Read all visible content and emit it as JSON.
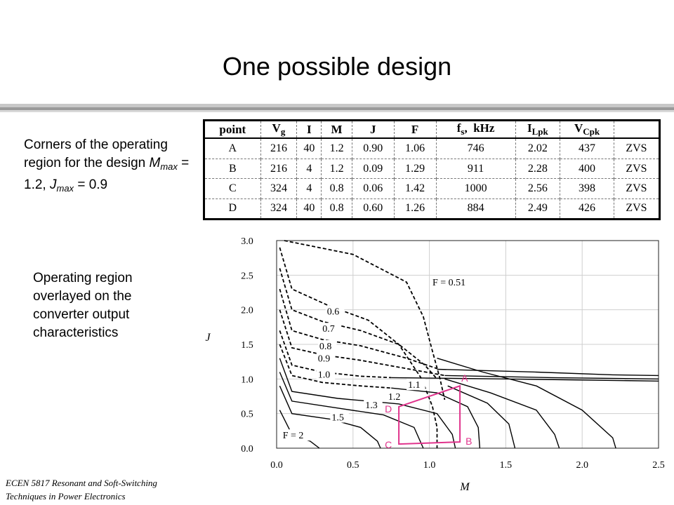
{
  "slide": {
    "title": "One possible design",
    "corners_text_1": "Corners of the operating region for the design ",
    "corners_m": "M",
    "corners_m_sub": "max",
    "corners_text_2": " = 1.2, ",
    "corners_j": "J",
    "corners_j_sub": "max",
    "corners_text_3": " = 0.9",
    "overlay_text": "Operating region overlayed on the converter output characteristics",
    "footer_line1": "ECEN 5817  Resonant and Soft-Switching",
    "footer_line2": "Techniques in Power Electronics"
  },
  "table": {
    "headers": [
      "point",
      "Vg",
      "I",
      "M",
      "J",
      "F",
      "fs, kHz",
      "ILpk",
      "VCpk",
      ""
    ],
    "rows": [
      [
        "A",
        "216",
        "40",
        "1.2",
        "0.90",
        "1.06",
        "746",
        "2.02",
        "437",
        "ZVS"
      ],
      [
        "B",
        "216",
        "4",
        "1.2",
        "0.09",
        "1.29",
        "911",
        "2.28",
        "400",
        "ZVS"
      ],
      [
        "C",
        "324",
        "4",
        "0.8",
        "0.06",
        "1.42",
        "1000",
        "2.56",
        "398",
        "ZVS"
      ],
      [
        "D",
        "324",
        "40",
        "0.8",
        "0.60",
        "1.26",
        "884",
        "2.49",
        "426",
        "ZVS"
      ]
    ]
  },
  "chart_data": {
    "type": "line",
    "xlabel": "M",
    "ylabel": "J",
    "xlim": [
      0,
      2.5
    ],
    "ylim": [
      0,
      3.0
    ],
    "x_ticks": [
      "0.0",
      "0.5",
      "1.0",
      "1.5",
      "2.0",
      "2.5"
    ],
    "y_ticks": [
      "0.0",
      "0.5",
      "1.0",
      "1.5",
      "2.0",
      "2.5",
      "3.0"
    ],
    "grid": true,
    "curve_labels": [
      {
        "text": "F = 0.51",
        "x": 1.02,
        "y": 2.35
      },
      {
        "text": "0.6",
        "x": 0.33,
        "y": 1.93
      },
      {
        "text": "0.7",
        "x": 0.3,
        "y": 1.68
      },
      {
        "text": "0.8",
        "x": 0.28,
        "y": 1.43
      },
      {
        "text": "0.9",
        "x": 0.27,
        "y": 1.25
      },
      {
        "text": "1.0",
        "x": 0.27,
        "y": 1.02
      },
      {
        "text": "1.1",
        "x": 0.86,
        "y": 0.87
      },
      {
        "text": "1.2",
        "x": 0.73,
        "y": 0.7
      },
      {
        "text": "1.3",
        "x": 0.58,
        "y": 0.58
      },
      {
        "text": "1.5",
        "x": 0.36,
        "y": 0.4
      },
      {
        "text": "F = 2",
        "x": 0.04,
        "y": 0.14
      }
    ],
    "series": [
      {
        "name": "F = 0.51",
        "style": "dashed",
        "points": [
          [
            0.05,
            3.0
          ],
          [
            0.5,
            2.8
          ],
          [
            0.85,
            2.4
          ],
          [
            0.96,
            1.9
          ],
          [
            1.02,
            1.4
          ],
          [
            1.07,
            1.0
          ],
          [
            1.1,
            0.7
          ]
        ]
      },
      {
        "name": "0.6",
        "style": "dashed",
        "points": [
          [
            0.02,
            2.9
          ],
          [
            0.1,
            2.3
          ],
          [
            0.35,
            2.05
          ],
          [
            0.6,
            1.85
          ],
          [
            0.8,
            1.5
          ],
          [
            0.95,
            1.0
          ],
          [
            1.02,
            0.6
          ],
          [
            1.05,
            0.3
          ],
          [
            1.05,
            0.0
          ]
        ]
      },
      {
        "name": "0.7",
        "style": "dashed",
        "points": [
          [
            0.02,
            2.6
          ],
          [
            0.1,
            2.0
          ],
          [
            0.3,
            1.83
          ],
          [
            0.55,
            1.7
          ],
          [
            0.8,
            1.5
          ],
          [
            0.97,
            1.2
          ],
          [
            1.05,
            1.0
          ]
        ]
      },
      {
        "name": "0.8",
        "style": "dashed",
        "points": [
          [
            0.02,
            2.3
          ],
          [
            0.1,
            1.7
          ],
          [
            0.3,
            1.57
          ],
          [
            0.55,
            1.48
          ],
          [
            0.85,
            1.3
          ],
          [
            1.05,
            1.15
          ]
        ]
      },
      {
        "name": "0.9",
        "style": "dashed",
        "points": [
          [
            0.02,
            2.0
          ],
          [
            0.1,
            1.45
          ],
          [
            0.3,
            1.35
          ],
          [
            0.55,
            1.27
          ],
          [
            0.85,
            1.15
          ],
          [
            1.1,
            1.05
          ]
        ]
      },
      {
        "name": "1.0",
        "style": "dashed",
        "points": [
          [
            0.02,
            1.7
          ],
          [
            0.1,
            1.2
          ],
          [
            0.3,
            1.1
          ],
          [
            0.55,
            1.04
          ],
          [
            0.75,
            1.02
          ]
        ]
      },
      {
        "name": "1.1",
        "style": "dashed",
        "points": [
          [
            0.02,
            1.5
          ],
          [
            0.1,
            1.05
          ],
          [
            0.3,
            0.95
          ],
          [
            0.55,
            0.9
          ],
          [
            0.75,
            0.87
          ]
        ]
      },
      {
        "name": "F = 0.51 solid",
        "style": "solid",
        "points": [
          [
            1.05,
            1.3
          ],
          [
            1.35,
            1.1
          ],
          [
            1.7,
            0.9
          ],
          [
            2.0,
            0.55
          ],
          [
            2.2,
            0.15
          ],
          [
            2.22,
            0.0
          ]
        ]
      },
      {
        "name": "0.6 solid",
        "style": "solid",
        "points": [
          [
            1.1,
            1.0
          ],
          [
            1.4,
            0.8
          ],
          [
            1.7,
            0.55
          ],
          [
            1.82,
            0.2
          ],
          [
            1.85,
            0.0
          ]
        ]
      },
      {
        "name": "0.7 solid",
        "style": "solid",
        "points": [
          [
            1.12,
            0.9
          ],
          [
            1.38,
            0.65
          ],
          [
            1.52,
            0.35
          ],
          [
            1.56,
            0.0
          ]
        ]
      },
      {
        "name": "0.8 solid",
        "style": "solid",
        "points": [
          [
            1.05,
            1.14
          ],
          [
            1.7,
            1.1
          ],
          [
            2.2,
            1.06
          ],
          [
            2.5,
            1.05
          ]
        ]
      },
      {
        "name": "0.9 solid",
        "style": "solid",
        "points": [
          [
            1.1,
            1.05
          ],
          [
            1.8,
            1.02
          ],
          [
            2.5,
            1.0
          ]
        ]
      },
      {
        "name": "1.0 solid",
        "style": "solid",
        "points": [
          [
            0.75,
            1.02
          ],
          [
            1.5,
            1.0
          ],
          [
            2.5,
            0.97
          ]
        ]
      },
      {
        "name": "1.1 solid",
        "style": "solid",
        "points": [
          [
            0.75,
            0.87
          ],
          [
            1.05,
            0.8
          ],
          [
            1.25,
            0.6
          ],
          [
            1.32,
            0.3
          ],
          [
            1.33,
            0.0
          ]
        ]
      },
      {
        "name": "1.2 solid",
        "style": "solid",
        "points": [
          [
            0.02,
            1.3
          ],
          [
            0.1,
            0.82
          ],
          [
            0.4,
            0.72
          ],
          [
            0.8,
            0.64
          ],
          [
            1.05,
            0.5
          ],
          [
            1.15,
            0.2
          ],
          [
            1.17,
            0.0
          ]
        ]
      },
      {
        "name": "1.3 solid",
        "style": "solid",
        "points": [
          [
            0.02,
            1.1
          ],
          [
            0.1,
            0.68
          ],
          [
            0.4,
            0.58
          ],
          [
            0.7,
            0.48
          ],
          [
            0.9,
            0.3
          ],
          [
            0.96,
            0.0
          ]
        ]
      },
      {
        "name": "1.5 solid",
        "style": "solid",
        "points": [
          [
            0.02,
            0.9
          ],
          [
            0.1,
            0.5
          ],
          [
            0.35,
            0.42
          ],
          [
            0.55,
            0.3
          ],
          [
            0.66,
            0.1
          ],
          [
            0.68,
            0.0
          ]
        ]
      },
      {
        "name": "F = 2 solid",
        "style": "solid",
        "points": [
          [
            0.02,
            0.55
          ],
          [
            0.1,
            0.2
          ],
          [
            0.22,
            0.1
          ],
          [
            0.28,
            0.0
          ]
        ]
      }
    ],
    "operating_region": {
      "color": "#e0338c",
      "points": [
        {
          "label": "A",
          "M": 1.2,
          "J": 0.9
        },
        {
          "label": "B",
          "M": 1.2,
          "J": 0.09
        },
        {
          "label": "C",
          "M": 0.8,
          "J": 0.06
        },
        {
          "label": "D",
          "M": 0.8,
          "J": 0.6
        }
      ]
    }
  }
}
